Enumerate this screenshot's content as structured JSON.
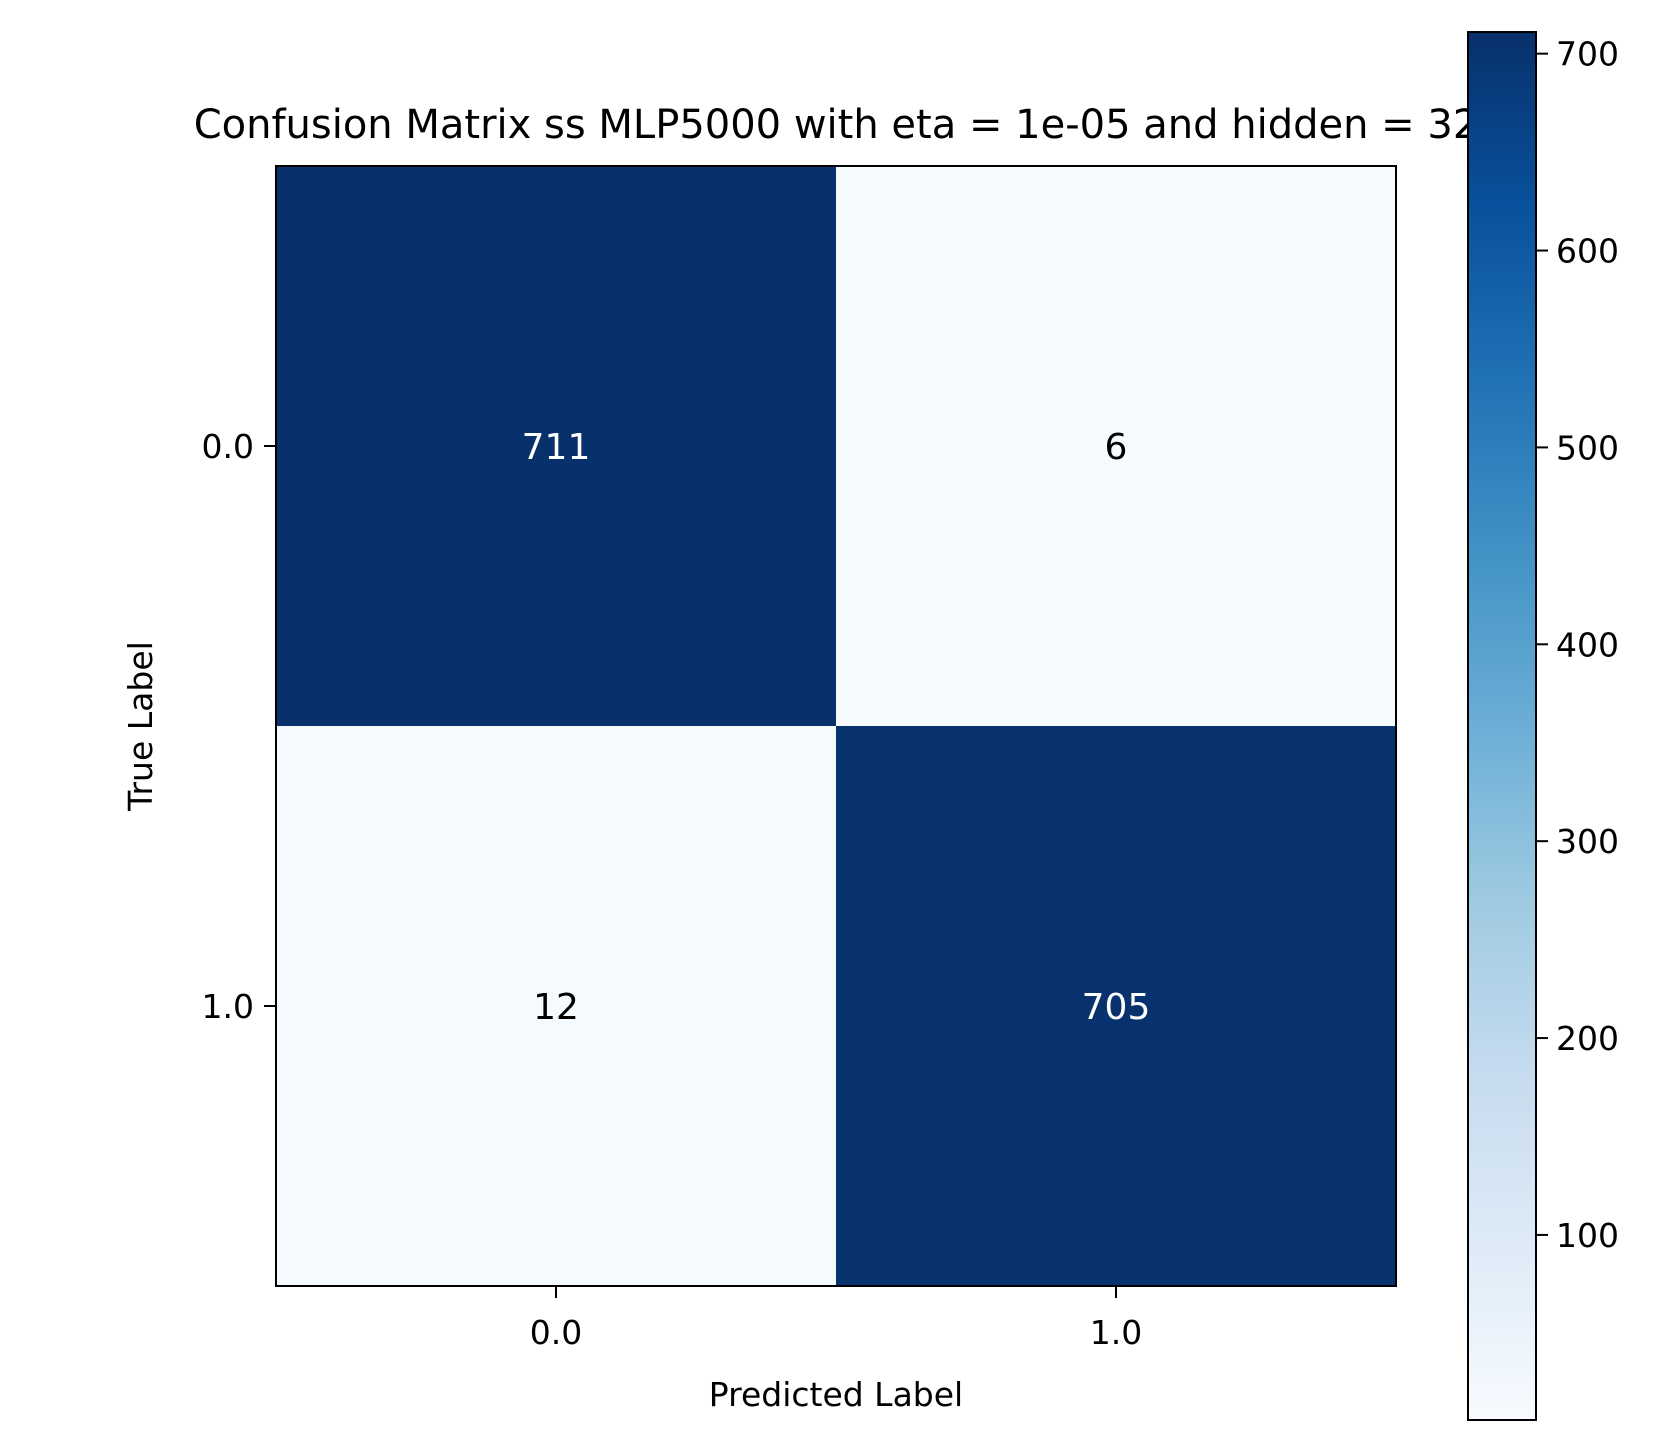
{
  "chart_data": {
    "type": "heatmap",
    "title": "Confusion Matrix ss MLP5000 with eta = 1e-05 and hidden = 32",
    "xlabel": "Predicted Label",
    "ylabel": "True Label",
    "x_categories": [
      "0.0",
      "1.0"
    ],
    "y_categories": [
      "0.0",
      "1.0"
    ],
    "matrix": [
      [
        711,
        6
      ],
      [
        12,
        705
      ]
    ],
    "colormap": "Blues",
    "colorbar": {
      "range": [
        6,
        711
      ],
      "ticks": [
        100,
        200,
        300,
        400,
        500,
        600,
        700
      ],
      "tick_labels": [
        "100",
        "200",
        "300",
        "400",
        "500",
        "600",
        "700"
      ]
    },
    "grid": false
  }
}
